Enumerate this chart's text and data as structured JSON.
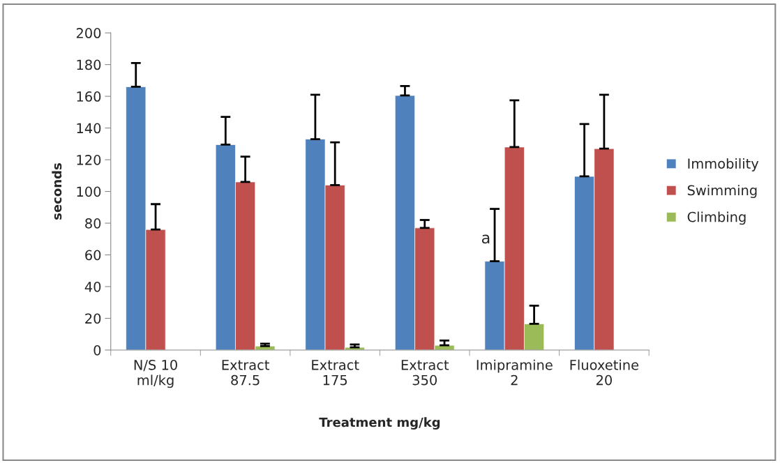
{
  "chart_data": {
    "type": "bar",
    "xlabel": "Treatment mg/kg",
    "ylabel": "seconds",
    "categories": [
      "N/S 10\nml/kg",
      "Extract\n87.5",
      "Extract\n175",
      "Extract\n350",
      "Imipramine\n2",
      "Fluoxetine\n20"
    ],
    "series": [
      {
        "name": "Immobility",
        "color": "#4f81bd",
        "values": [
          166,
          129.5,
          133,
          160.5,
          56,
          109.5
        ],
        "errors": [
          [
            166,
            181
          ],
          [
            129.5,
            147
          ],
          [
            133,
            161
          ],
          [
            160.5,
            166.5
          ],
          [
            56,
            89
          ],
          [
            109.5,
            142.5
          ]
        ]
      },
      {
        "name": "Swimming",
        "color": "#c0504d",
        "values": [
          76,
          106,
          104,
          77,
          128,
          127
        ],
        "errors": [
          [
            76,
            92
          ],
          [
            106,
            122
          ],
          [
            104,
            131
          ],
          [
            77,
            82
          ],
          [
            128,
            157.5
          ],
          [
            127,
            161
          ]
        ]
      },
      {
        "name": "Climbing",
        "color": "#9bbb59",
        "values": [
          null,
          2.5,
          1.7,
          3,
          16.5,
          null
        ],
        "errors": [
          null,
          [
            2.5,
            4
          ],
          [
            1.7,
            3.5
          ],
          [
            3,
            6
          ],
          [
            16.5,
            28
          ],
          null
        ]
      }
    ],
    "ylim": [
      0,
      200
    ],
    "yticks": [
      0,
      20,
      40,
      60,
      80,
      100,
      120,
      140,
      160,
      180,
      200
    ],
    "grid": false,
    "legend": "right",
    "annotations": [
      "a"
    ]
  }
}
